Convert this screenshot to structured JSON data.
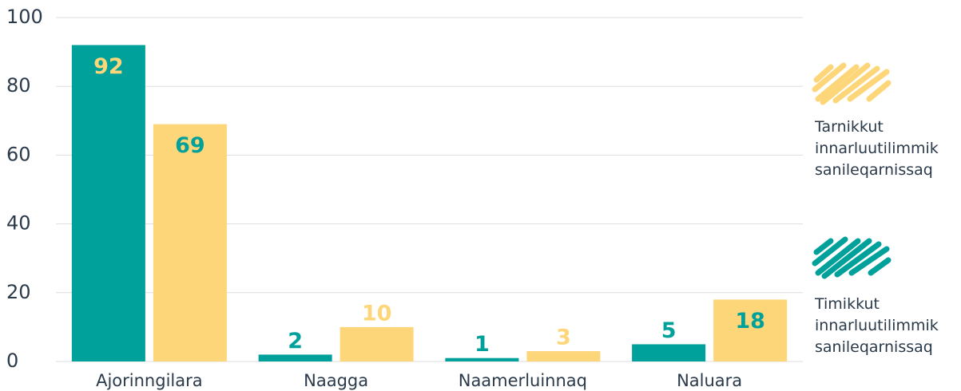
{
  "chart_data": {
    "type": "bar",
    "categories": [
      "Ajorinngilara",
      "Naagga",
      "Naamerluinnaq",
      "Naluara"
    ],
    "series": [
      {
        "name": "Timikkut innarluutilimmik sanileqarnissaq",
        "color": "#00a19a",
        "values": [
          92,
          2,
          1,
          5
        ]
      },
      {
        "name": "Tarnikkut innarluutilimmik sanileqarnissaq",
        "color": "#fdd67a",
        "values": [
          69,
          10,
          3,
          18
        ]
      }
    ],
    "ylim": [
      0,
      100
    ],
    "yticks": [
      0,
      20,
      40,
      60,
      80,
      100
    ],
    "grid": true
  }
}
